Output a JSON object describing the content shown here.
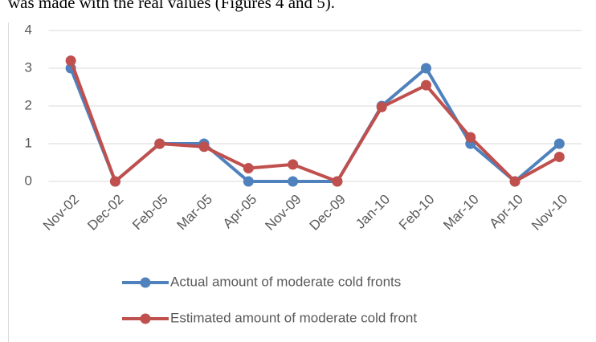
{
  "context_text": "was made with the real values (Figures 4 and 5).",
  "chart_data": {
    "type": "line",
    "categories": [
      "Nov-02",
      "Dec-02",
      "Feb-05",
      "Mar-05",
      "Apr-05",
      "Nov-09",
      "Dec-09",
      "Jan-10",
      "Feb-10",
      "Mar-10",
      "Apr-10",
      "Nov-10"
    ],
    "series": [
      {
        "name": "Actual amount of moderate cold fronts",
        "color": "#4f81bd",
        "values": [
          3,
          0,
          1,
          1,
          0,
          0,
          0,
          2,
          3,
          1,
          0,
          1
        ]
      },
      {
        "name": "Estimated amount of moderate cold front",
        "color": "#c0504d",
        "values": [
          3.2,
          0,
          1,
          0.92,
          0.35,
          0.45,
          0,
          1.97,
          2.55,
          1.17,
          0,
          0.65
        ]
      }
    ],
    "ylim": [
      0,
      4
    ],
    "yticks": [
      0,
      1,
      2,
      3,
      4
    ],
    "grid": true,
    "legend": "bottom"
  }
}
